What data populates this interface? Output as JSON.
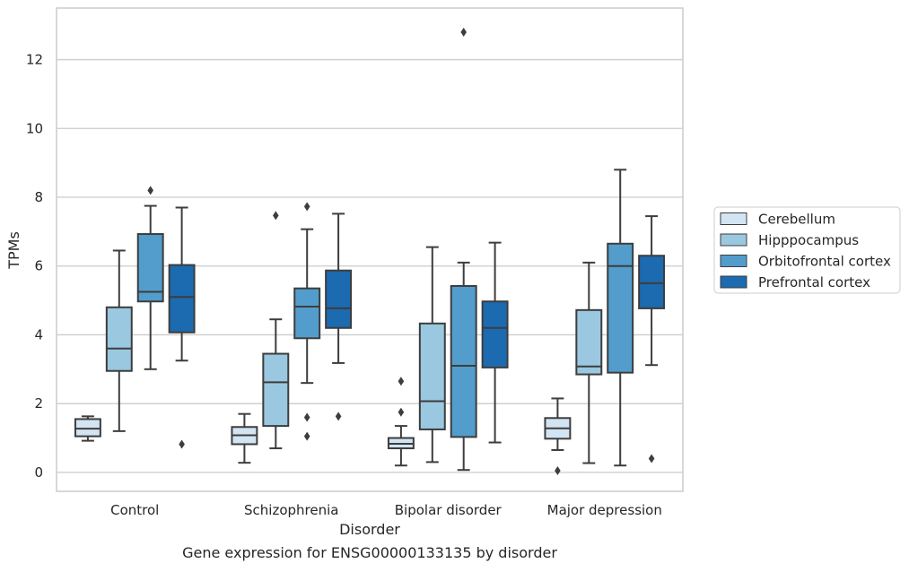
{
  "caption": "Gene expression for ENSG00000133135 by disorder",
  "chart_data": {
    "type": "box",
    "title": "",
    "xlabel": "Disorder",
    "ylabel": "TPMs",
    "ylim": [
      -0.55,
      13.5
    ],
    "yticks": [
      0,
      2,
      4,
      6,
      8,
      10,
      12
    ],
    "grid": "horizontal",
    "legend_position": "right",
    "categories": [
      "Control",
      "Schizophrenia",
      "Bipolar disorder",
      "Major depression"
    ],
    "series": [
      {
        "name": "Cerebellum",
        "color": "#d3e4f3",
        "boxes": [
          {
            "whisker_low": 0.92,
            "q1": 1.05,
            "median": 1.27,
            "q3": 1.55,
            "whisker_high": 1.63,
            "outliers": []
          },
          {
            "whisker_low": 0.28,
            "q1": 0.82,
            "median": 1.08,
            "q3": 1.32,
            "whisker_high": 1.7,
            "outliers": []
          },
          {
            "whisker_low": 0.2,
            "q1": 0.7,
            "median": 0.83,
            "q3": 1.0,
            "whisker_high": 1.35,
            "outliers": [
              1.75,
              2.65
            ]
          },
          {
            "whisker_low": 0.65,
            "q1": 0.98,
            "median": 1.28,
            "q3": 1.58,
            "whisker_high": 2.15,
            "outliers": [
              0.05
            ]
          }
        ]
      },
      {
        "name": "Hipppocampus",
        "color": "#9ac8e0",
        "boxes": [
          {
            "whisker_low": 1.2,
            "q1": 2.95,
            "median": 3.6,
            "q3": 4.8,
            "whisker_high": 6.45,
            "outliers": []
          },
          {
            "whisker_low": 0.7,
            "q1": 1.35,
            "median": 2.62,
            "q3": 3.45,
            "whisker_high": 4.45,
            "outliers": [
              7.47
            ]
          },
          {
            "whisker_low": 0.3,
            "q1": 1.25,
            "median": 2.07,
            "q3": 4.33,
            "whisker_high": 6.55,
            "outliers": []
          },
          {
            "whisker_low": 0.27,
            "q1": 2.85,
            "median": 3.08,
            "q3": 4.72,
            "whisker_high": 6.1,
            "outliers": []
          }
        ]
      },
      {
        "name": "Orbitofrontal cortex",
        "color": "#529dcc",
        "boxes": [
          {
            "whisker_low": 3.0,
            "q1": 4.97,
            "median": 5.25,
            "q3": 6.93,
            "whisker_high": 7.75,
            "outliers": [
              8.2
            ]
          },
          {
            "whisker_low": 2.6,
            "q1": 3.9,
            "median": 4.82,
            "q3": 5.35,
            "whisker_high": 7.07,
            "outliers": [
              1.05,
              1.6,
              7.73
            ]
          },
          {
            "whisker_low": 0.07,
            "q1": 1.03,
            "median": 3.1,
            "q3": 5.42,
            "whisker_high": 6.1,
            "outliers": [
              12.8
            ]
          },
          {
            "whisker_low": 0.2,
            "q1": 2.9,
            "median": 6.0,
            "q3": 6.65,
            "whisker_high": 8.8,
            "outliers": []
          }
        ]
      },
      {
        "name": "Prefrontal cortex",
        "color": "#1c6aaf",
        "boxes": [
          {
            "whisker_low": 3.25,
            "q1": 4.07,
            "median": 5.1,
            "q3": 6.03,
            "whisker_high": 7.7,
            "outliers": [
              0.82
            ]
          },
          {
            "whisker_low": 3.18,
            "q1": 4.2,
            "median": 4.77,
            "q3": 5.87,
            "whisker_high": 7.52,
            "outliers": [
              1.63
            ]
          },
          {
            "whisker_low": 0.87,
            "q1": 3.05,
            "median": 4.2,
            "q3": 4.97,
            "whisker_high": 6.68,
            "outliers": []
          },
          {
            "whisker_low": 3.12,
            "q1": 4.77,
            "median": 5.5,
            "q3": 6.3,
            "whisker_high": 7.45,
            "outliers": [
              0.4
            ]
          }
        ]
      }
    ]
  },
  "colors": {
    "grid": "#cccccc",
    "frame": "#cccccc",
    "box_edge": "#3d3d3d",
    "legend_edge": "#cccccc"
  }
}
